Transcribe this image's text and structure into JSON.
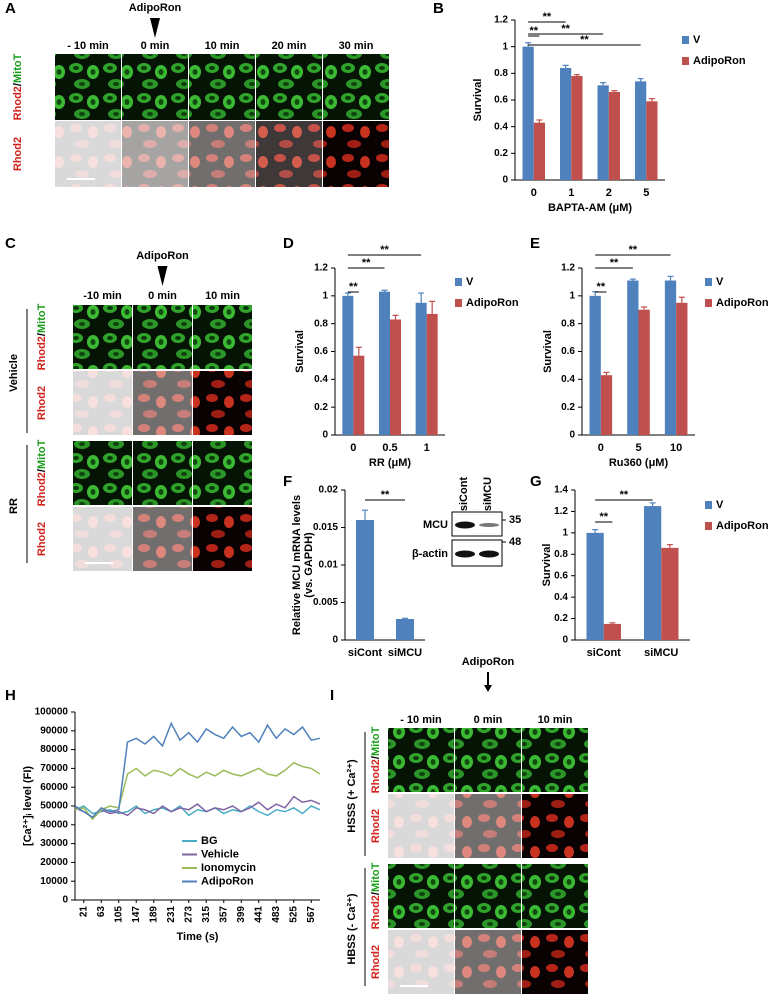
{
  "images": [
    {
      "panel": "A",
      "treatment": "AdipoRon",
      "columns": [
        "- 10 min",
        "0 min",
        "10 min",
        "20 min",
        "30 min"
      ],
      "groups": [
        {
          "rows": [
            "Rhod2/MitoT",
            "Rhod2"
          ]
        }
      ]
    },
    {
      "panel": "C",
      "treatment": "AdipoRon",
      "columns": [
        "-10 min",
        "0 min",
        "10 min"
      ],
      "groups": [
        {
          "name": "Vehicle",
          "rows": [
            "Rhod2/MitoT",
            "Rhod2"
          ]
        },
        {
          "name": "RR",
          "rows": [
            "Rhod2/MitoT",
            "Rhod2"
          ]
        }
      ]
    },
    {
      "panel": "I",
      "treatment": "AdipoRon",
      "columns": [
        "- 10 min",
        "0 min",
        "10 min"
      ],
      "groups": [
        {
          "name": "HSSS (+ Ca²⁺)",
          "rows": [
            "Rhod2/MitoT",
            "Rhod2"
          ]
        },
        {
          "name": "HBSS (- Ca²⁺)",
          "rows": [
            "Rhod2/MitoT",
            "Rhod2"
          ]
        }
      ]
    }
  ],
  "blot": {
    "lanes": [
      "siCont",
      "siMCU"
    ],
    "proteins": [
      "MCU",
      "β-actin"
    ],
    "markers": [
      "35",
      "48"
    ]
  },
  "chart_data": [
    {
      "type": "bar",
      "panel": "B",
      "ylabel": [
        "Survival"
      ],
      "xlabel": "BAPTA-AM (μM)",
      "categories": [
        "0",
        "1",
        "2",
        "5"
      ],
      "ylim": [
        0,
        1.2
      ],
      "yticks": [
        0,
        0.2,
        0.4,
        0.6,
        0.8,
        1,
        1.2
      ],
      "series": [
        {
          "name": "V",
          "color": "#4f81bd",
          "values": [
            1.0,
            0.84,
            0.71,
            0.74
          ],
          "errors": [
            0.03,
            0.02,
            0.02,
            0.02
          ]
        },
        {
          "name": "AdipoRon",
          "color": "#c0504d",
          "values": [
            0.43,
            0.78,
            0.66,
            0.59
          ],
          "errors": [
            0.02,
            0.01,
            0.01,
            0.02
          ]
        }
      ],
      "annotations": [
        {
          "text": "**",
          "categories": [
            "0",
            "0"
          ]
        },
        {
          "text": "**",
          "categories": [
            "0",
            "1"
          ]
        },
        {
          "text": "**",
          "categories": [
            "0",
            "2"
          ]
        },
        {
          "text": "**",
          "categories": [
            "0",
            "5"
          ]
        }
      ]
    },
    {
      "type": "bar",
      "panel": "D",
      "ylabel": [
        "Survival"
      ],
      "xlabel": "RR (μM)",
      "categories": [
        "0",
        "0.5",
        "1"
      ],
      "ylim": [
        0,
        1.2
      ],
      "yticks": [
        0,
        0.2,
        0.4,
        0.6,
        0.8,
        1,
        1.2
      ],
      "series": [
        {
          "name": "V",
          "color": "#4f81bd",
          "values": [
            1.0,
            1.03,
            0.95
          ],
          "errors": [
            0.02,
            0.01,
            0.07
          ]
        },
        {
          "name": "AdipoRon",
          "color": "#c0504d",
          "values": [
            0.57,
            0.83,
            0.87
          ],
          "errors": [
            0.06,
            0.03,
            0.09
          ]
        }
      ],
      "annotations": [
        {
          "text": "**",
          "categories": [
            "0",
            "0"
          ]
        },
        {
          "text": "**",
          "categories": [
            "0",
            "0.5"
          ]
        },
        {
          "text": "**",
          "categories": [
            "0",
            "1"
          ]
        }
      ]
    },
    {
      "type": "bar",
      "panel": "E",
      "ylabel": [
        "Survival"
      ],
      "xlabel": "Ru360 (μM)",
      "categories": [
        "0",
        "5",
        "10"
      ],
      "ylim": [
        0,
        1.2
      ],
      "yticks": [
        0,
        0.2,
        0.4,
        0.6,
        0.8,
        1,
        1.2
      ],
      "series": [
        {
          "name": "V",
          "color": "#4f81bd",
          "values": [
            1.0,
            1.11,
            1.11
          ],
          "errors": [
            0.03,
            0.01,
            0.03
          ]
        },
        {
          "name": "AdipoRon",
          "color": "#c0504d",
          "values": [
            0.43,
            0.9,
            0.95
          ],
          "errors": [
            0.02,
            0.02,
            0.04
          ]
        }
      ],
      "annotations": [
        {
          "text": "**",
          "categories": [
            "0",
            "0"
          ]
        },
        {
          "text": "**",
          "categories": [
            "0",
            "5"
          ]
        },
        {
          "text": "**",
          "categories": [
            "0",
            "10"
          ]
        }
      ]
    },
    {
      "type": "bar",
      "panel": "F",
      "ylabel": [
        "Relative MCU mRNA levels",
        "(vs. GAPDH)"
      ],
      "categories": [
        "siCont",
        "siMCU"
      ],
      "ylim": [
        0,
        0.02
      ],
      "yticks": [
        0,
        0.005,
        0.01,
        0.015,
        0.02
      ],
      "color": "#4f81bd",
      "values": [
        0.016,
        0.0028
      ],
      "errors": [
        0.0013,
        0.0001
      ],
      "annotations": [
        {
          "text": "**",
          "categories": [
            "siCont",
            "siMCU"
          ]
        }
      ]
    },
    {
      "type": "bar",
      "panel": "G",
      "ylabel": [
        "Survival"
      ],
      "categories": [
        "siCont",
        "siMCU"
      ],
      "ylim": [
        0,
        1.4
      ],
      "yticks": [
        0,
        0.2,
        0.4,
        0.6,
        0.8,
        1,
        1.2,
        1.4
      ],
      "series": [
        {
          "name": "V",
          "color": "#4f81bd",
          "values": [
            1.0,
            1.25
          ],
          "errors": [
            0.03,
            0.03
          ]
        },
        {
          "name": "AdipoRon",
          "color": "#c0504d",
          "values": [
            0.15,
            0.86
          ],
          "errors": [
            0.01,
            0.03
          ]
        }
      ],
      "annotations": [
        {
          "text": "**",
          "categories": [
            "siCont",
            "siCont"
          ]
        },
        {
          "text": "**",
          "categories": [
            "siCont",
            "siMCU"
          ]
        }
      ]
    },
    {
      "type": "line",
      "panel": "H",
      "ylabel": [
        "[Ca²⁺]ᵢ level (FI)"
      ],
      "xlabel": "Time (s)",
      "x": [
        0,
        21,
        42,
        63,
        84,
        105,
        126,
        147,
        168,
        189,
        210,
        231,
        252,
        273,
        294,
        315,
        336,
        357,
        378,
        399,
        420,
        441,
        462,
        483,
        504,
        525,
        546,
        567,
        588
      ],
      "xlim": [
        0,
        588
      ],
      "xticks": [
        21,
        63,
        105,
        147,
        189,
        231,
        273,
        315,
        357,
        399,
        441,
        483,
        525,
        567
      ],
      "ylim": [
        0,
        100000
      ],
      "yticks": [
        0,
        10000,
        20000,
        30000,
        40000,
        50000,
        60000,
        70000,
        80000,
        90000,
        100000
      ],
      "series": [
        {
          "name": "BG",
          "color": "#4bacc6",
          "values": [
            48000,
            50000,
            46000,
            47000,
            48000,
            46000,
            47000,
            50000,
            46000,
            48000,
            49000,
            47000,
            50000,
            45000,
            48000,
            47000,
            49000,
            46000,
            48000,
            47000,
            50000,
            47000,
            45000,
            48000,
            47000,
            49000,
            46000,
            50000,
            48000
          ]
        },
        {
          "name": "Vehicle",
          "color": "#8064a2",
          "values": [
            49000,
            47000,
            44000,
            48000,
            46000,
            47000,
            45000,
            49000,
            48000,
            46000,
            50000,
            47000,
            49000,
            48000,
            51000,
            47000,
            49000,
            48000,
            50000,
            47000,
            49000,
            52000,
            48000,
            51000,
            49000,
            55000,
            52000,
            53000,
            51000
          ]
        },
        {
          "name": "Ionomycin",
          "color": "#9bbb59",
          "values": [
            48000,
            49000,
            43000,
            48000,
            50000,
            49000,
            67000,
            70000,
            66000,
            69000,
            68000,
            66000,
            70000,
            67000,
            65000,
            68000,
            66000,
            69000,
            67000,
            66000,
            68000,
            70000,
            67000,
            66000,
            69000,
            73000,
            71000,
            70000,
            67000
          ]
        },
        {
          "name": "AdipoRon",
          "color": "#4f81bd",
          "values": [
            50000,
            47000,
            44000,
            49000,
            47000,
            48000,
            84000,
            86000,
            83000,
            87000,
            82000,
            94000,
            85000,
            89000,
            84000,
            91000,
            88000,
            86000,
            92000,
            87000,
            89000,
            84000,
            93000,
            86000,
            91000,
            88000,
            92000,
            85000,
            86000
          ]
        }
      ]
    }
  ]
}
